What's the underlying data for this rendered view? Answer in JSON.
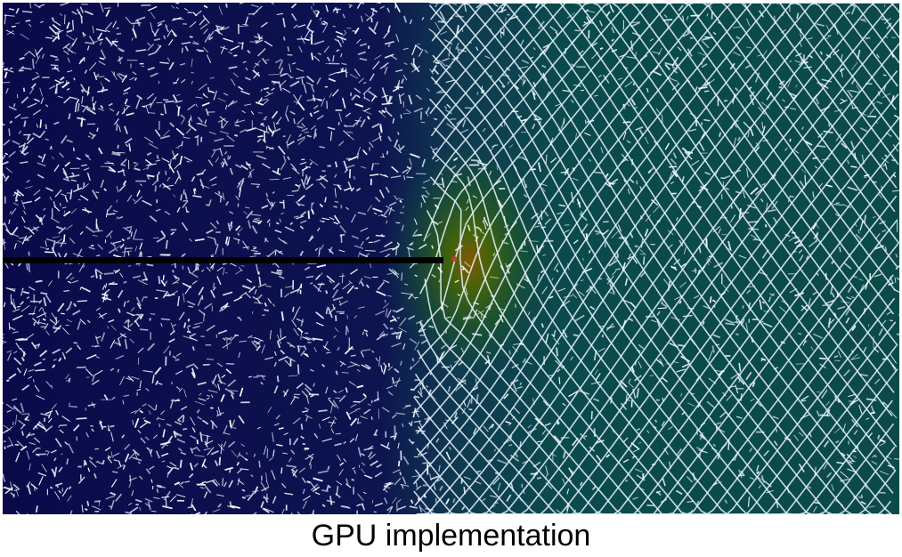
{
  "caption": "GPU implementation",
  "colors": {
    "background_low": "#0a0a4a",
    "background_high": "#0b4a48",
    "hotspot": "#4a6a00",
    "crack": "#000000",
    "mesh_lines": "#e8f4ff"
  },
  "visual_elements": {
    "crack_line": "horizontal black crack entering from the left edge",
    "mesh": "deformed white mesh / field lines over a blue-to-teal stress field"
  }
}
